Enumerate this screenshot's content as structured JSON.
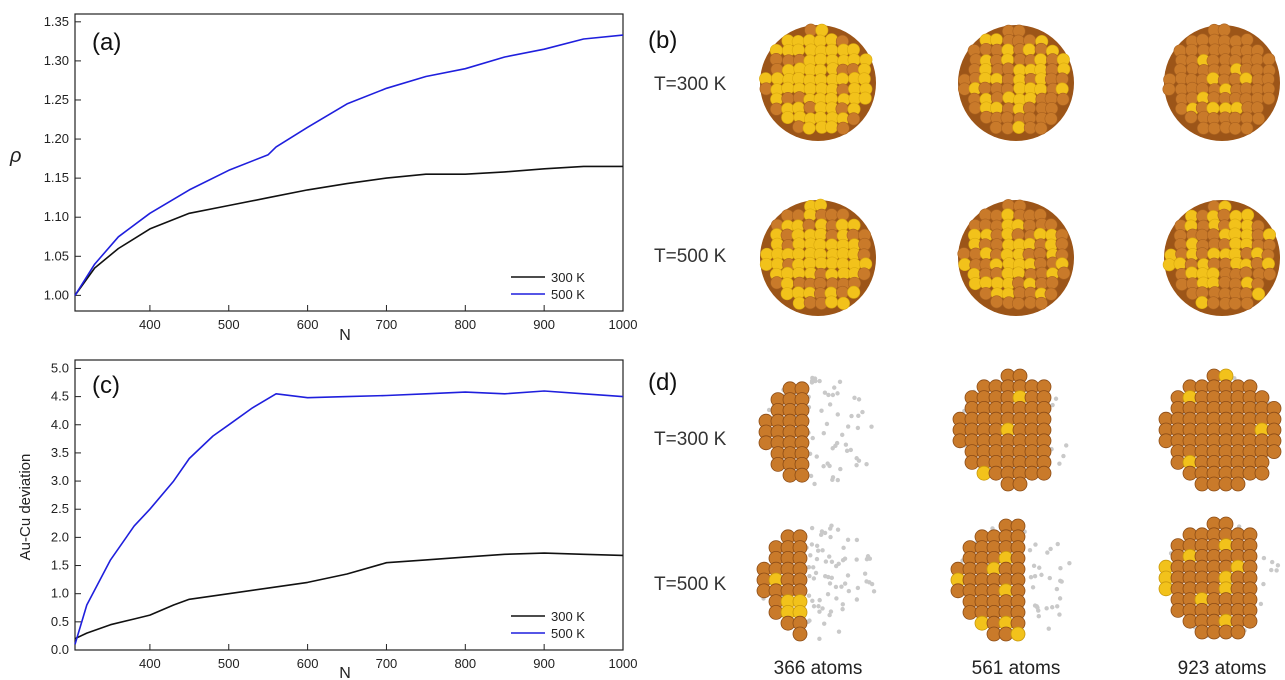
{
  "chart_data": [
    {
      "panel": "(a)",
      "type": "line",
      "xlabel": "N",
      "ylabel": "ρ",
      "xlim": [
        305,
        1000
      ],
      "ylim": [
        0.98,
        1.36
      ],
      "xticks": [
        400,
        500,
        600,
        700,
        800,
        900,
        1000
      ],
      "yticks": [
        1.0,
        1.05,
        1.1,
        1.15,
        1.2,
        1.25,
        1.3,
        1.35
      ],
      "legend_position": "bottom-right",
      "series": [
        {
          "name": "300 K",
          "color": "#111111",
          "x": [
            305,
            330,
            360,
            400,
            450,
            500,
            550,
            600,
            650,
            700,
            750,
            800,
            850,
            900,
            950,
            1000
          ],
          "y": [
            1.0,
            1.035,
            1.06,
            1.085,
            1.105,
            1.115,
            1.125,
            1.135,
            1.143,
            1.15,
            1.155,
            1.155,
            1.158,
            1.162,
            1.165,
            1.165
          ]
        },
        {
          "name": "500 K",
          "color": "#1f1fdd",
          "x": [
            305,
            330,
            360,
            400,
            450,
            500,
            550,
            560,
            600,
            650,
            700,
            750,
            800,
            850,
            900,
            950,
            1000
          ],
          "y": [
            1.0,
            1.04,
            1.075,
            1.105,
            1.135,
            1.16,
            1.18,
            1.19,
            1.215,
            1.245,
            1.265,
            1.28,
            1.29,
            1.305,
            1.315,
            1.328,
            1.333
          ]
        }
      ]
    },
    {
      "panel": "(c)",
      "type": "line",
      "xlabel": "N",
      "ylabel": "Au-Cu deviation",
      "xlim": [
        305,
        1000
      ],
      "ylim": [
        0.0,
        5.15
      ],
      "xticks": [
        400,
        500,
        600,
        700,
        800,
        900,
        1000
      ],
      "yticks": [
        0.0,
        0.5,
        1.0,
        1.5,
        2.0,
        2.5,
        3.0,
        3.5,
        4.0,
        4.5,
        5.0
      ],
      "legend_position": "bottom-right",
      "series": [
        {
          "name": "300 K",
          "color": "#111111",
          "x": [
            305,
            320,
            350,
            380,
            400,
            430,
            450,
            500,
            550,
            600,
            650,
            700,
            750,
            800,
            850,
            900,
            950,
            1000
          ],
          "y": [
            0.2,
            0.3,
            0.45,
            0.55,
            0.62,
            0.8,
            0.9,
            1.0,
            1.1,
            1.2,
            1.35,
            1.55,
            1.6,
            1.65,
            1.7,
            1.72,
            1.7,
            1.68
          ]
        },
        {
          "name": "500 K",
          "color": "#1f1fdd",
          "x": [
            305,
            320,
            350,
            380,
            400,
            430,
            450,
            480,
            500,
            530,
            560,
            600,
            650,
            700,
            750,
            800,
            850,
            900,
            950,
            1000
          ],
          "y": [
            0.1,
            0.8,
            1.6,
            2.2,
            2.5,
            3.0,
            3.4,
            3.8,
            4.0,
            4.3,
            4.55,
            4.48,
            4.5,
            4.52,
            4.55,
            4.58,
            4.55,
            4.6,
            4.55,
            4.5
          ]
        }
      ]
    }
  ],
  "panels_right": {
    "label_b": "(b)",
    "label_d": "(d)",
    "rows_b": [
      {
        "label": "T=300 K",
        "gold_share": [
          0.85,
          0.5,
          0.25
        ]
      },
      {
        "label": "T=500 K",
        "gold_share": [
          0.75,
          0.55,
          0.55
        ]
      }
    ],
    "rows_d": [
      {
        "label": "T=300 K"
      },
      {
        "label": "T=500 K"
      }
    ],
    "captions": [
      "366 atoms",
      "561 atoms",
      "923 atoms"
    ],
    "colors": {
      "gold": "#f2c21b",
      "copper": "#c97a2a",
      "copper_dark": "#9c5518",
      "core": "#c9c9c9"
    }
  }
}
